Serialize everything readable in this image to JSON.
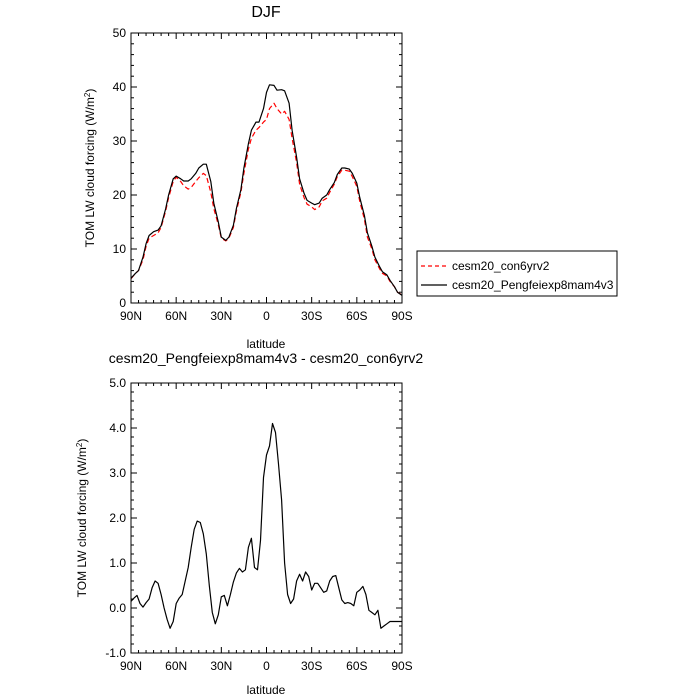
{
  "chart_data": [
    {
      "type": "line",
      "title": "DJF",
      "xlabel": "latitude",
      "ylabel_main": "TOM LW cloud forcing (W/m",
      "ylabel_sup": "2",
      "ylabel_close": ")",
      "xlim": [
        90,
        -90
      ],
      "ylim": [
        0,
        50
      ],
      "x_ticks": [
        {
          "value": 90,
          "label": "90N"
        },
        {
          "value": 60,
          "label": "60N"
        },
        {
          "value": 30,
          "label": "30N"
        },
        {
          "value": 0,
          "label": "0"
        },
        {
          "value": -30,
          "label": "30S"
        },
        {
          "value": -60,
          "label": "60S"
        },
        {
          "value": -90,
          "label": "90S"
        }
      ],
      "y_ticks": [
        {
          "value": 0,
          "label": "0"
        },
        {
          "value": 10,
          "label": "10"
        },
        {
          "value": 20,
          "label": "20"
        },
        {
          "value": 30,
          "label": "30"
        },
        {
          "value": 40,
          "label": "40"
        },
        {
          "value": 50,
          "label": "50"
        }
      ],
      "legend_position": "right",
      "series": [
        {
          "name": "cesm20_con6yrv2",
          "color": "#ff0000",
          "dash": true,
          "x": [
            90,
            87,
            85,
            82,
            80,
            78,
            75,
            72,
            70,
            67,
            65,
            62,
            60,
            57,
            55,
            52,
            50,
            47,
            45,
            42,
            40,
            37,
            35,
            32,
            30,
            27,
            25,
            22,
            20,
            17,
            15,
            12,
            10,
            7,
            5,
            2,
            0,
            -2,
            -5,
            -7,
            -10,
            -12,
            -15,
            -17,
            -20,
            -22,
            -25,
            -27,
            -30,
            -32,
            -35,
            -37,
            -40,
            -42,
            -45,
            -47,
            -50,
            -52,
            -55,
            -57,
            -60,
            -62,
            -65,
            -67,
            -70,
            -72,
            -75,
            -77,
            -80,
            -82,
            -85,
            -87,
            -90
          ],
          "y": [
            4.5,
            5.5,
            6,
            8,
            10.5,
            12,
            12.5,
            13,
            14,
            17,
            19.5,
            22.5,
            23.3,
            22.5,
            21.7,
            21.1,
            21.4,
            22.5,
            23.2,
            24,
            23.6,
            20.5,
            17.5,
            14.5,
            12,
            11.5,
            12,
            14,
            17,
            20.5,
            24,
            28.5,
            30.5,
            32,
            32.5,
            33.5,
            34,
            36,
            37,
            36,
            35,
            35.5,
            34,
            30.5,
            26,
            22,
            19.5,
            18.3,
            17.8,
            17.3,
            17.8,
            18.9,
            19.4,
            20.5,
            22,
            23.4,
            24.6,
            24.6,
            24.4,
            23.4,
            21.6,
            18.8,
            15.5,
            12.2,
            10,
            8,
            6.4,
            5.5,
            5,
            4,
            3,
            2,
            1.5
          ]
        },
        {
          "name": "cesm20_Pengfeiexp8mam4v3",
          "color": "#000000",
          "dash": false,
          "x": [
            90,
            87,
            85,
            82,
            80,
            78,
            75,
            72,
            70,
            67,
            65,
            62,
            60,
            57,
            55,
            52,
            50,
            47,
            45,
            42,
            40,
            37,
            35,
            32,
            30,
            27,
            25,
            22,
            20,
            17,
            15,
            12,
            10,
            7,
            5,
            2,
            0,
            -2,
            -5,
            -7,
            -10,
            -12,
            -15,
            -17,
            -20,
            -22,
            -25,
            -27,
            -30,
            -32,
            -35,
            -37,
            -40,
            -42,
            -45,
            -47,
            -50,
            -52,
            -55,
            -57,
            -60,
            -62,
            -65,
            -67,
            -70,
            -72,
            -75,
            -77,
            -80,
            -82,
            -85,
            -87,
            -90
          ],
          "y": [
            4.6,
            5.5,
            6,
            8.5,
            11,
            12.5,
            13.2,
            13.5,
            14.3,
            17.4,
            20,
            23,
            23.5,
            23,
            22.6,
            22.6,
            23,
            24,
            25,
            25.7,
            25.7,
            22.5,
            18.5,
            15,
            12.2,
            11.6,
            12.2,
            14.4,
            17.5,
            21,
            25,
            29.5,
            32,
            33.5,
            33.5,
            36,
            39,
            40.4,
            40.3,
            39.4,
            39.5,
            39.3,
            37,
            32,
            27,
            23,
            20.3,
            19,
            18.5,
            18.2,
            18.5,
            19.4,
            20,
            21,
            22.3,
            23.8,
            25,
            25,
            24.8,
            24,
            22.2,
            19.5,
            16.2,
            13,
            10.5,
            8.5,
            6.8,
            5.8,
            5.2,
            4.2,
            3,
            2,
            1.4
          ]
        }
      ]
    },
    {
      "type": "line",
      "title": "cesm20_Pengfeiexp8mam4v3 - cesm20_con6yrv2",
      "xlabel": "latitude",
      "ylabel_main": "TOM LW cloud forcing (W/m",
      "ylabel_sup": "2",
      "ylabel_close": ")",
      "xlim": [
        90,
        -90
      ],
      "ylim": [
        -1.0,
        5.0
      ],
      "x_ticks": [
        {
          "value": 90,
          "label": "90N"
        },
        {
          "value": 60,
          "label": "60N"
        },
        {
          "value": 30,
          "label": "30N"
        },
        {
          "value": 0,
          "label": "0"
        },
        {
          "value": -30,
          "label": "30S"
        },
        {
          "value": -60,
          "label": "60S"
        },
        {
          "value": -90,
          "label": "90S"
        }
      ],
      "y_ticks": [
        {
          "value": -1.0,
          "label": "-1.0"
        },
        {
          "value": 0.0,
          "label": "0.0"
        },
        {
          "value": 1.0,
          "label": "1.0"
        },
        {
          "value": 2.0,
          "label": "2.0"
        },
        {
          "value": 3.0,
          "label": "3.0"
        },
        {
          "value": 4.0,
          "label": "4.0"
        },
        {
          "value": 5.0,
          "label": "5.0"
        }
      ],
      "series": [
        {
          "color": "#000000",
          "dash": false,
          "x": [
            90,
            88,
            86,
            84,
            82,
            80,
            78,
            76,
            74,
            72,
            70,
            68,
            66,
            64,
            62,
            60,
            58,
            56,
            54,
            52,
            50,
            48,
            46,
            44,
            42,
            40,
            38,
            36,
            34,
            32,
            30,
            28,
            26,
            24,
            22,
            20,
            18,
            16,
            14,
            12,
            10,
            8,
            6,
            4,
            2,
            0,
            -2,
            -4,
            -6,
            -8,
            -10,
            -12,
            -14,
            -16,
            -18,
            -20,
            -22,
            -24,
            -26,
            -28,
            -30,
            -32,
            -34,
            -36,
            -38,
            -40,
            -42,
            -44,
            -46,
            -48,
            -50,
            -52,
            -54,
            -56,
            -58,
            -60,
            -62,
            -64,
            -66,
            -68,
            -70,
            -72,
            -74,
            -76,
            -78,
            -80,
            -82,
            -84,
            -86,
            -88,
            -90
          ],
          "y": [
            0.15,
            0.22,
            0.28,
            0.1,
            0.02,
            0.12,
            0.2,
            0.45,
            0.6,
            0.55,
            0.3,
            0,
            -0.25,
            -0.45,
            -0.3,
            0.1,
            0.22,
            0.3,
            0.6,
            0.9,
            1.35,
            1.75,
            1.93,
            1.9,
            1.65,
            1.2,
            0.5,
            -0.1,
            -0.35,
            -0.15,
            0.25,
            0.28,
            0.05,
            0.3,
            0.58,
            0.78,
            0.88,
            0.8,
            0.85,
            1.35,
            1.55,
            0.9,
            0.85,
            1.5,
            2.9,
            3.4,
            3.6,
            4.1,
            3.9,
            3.2,
            2.4,
            1.0,
            0.3,
            0.1,
            0.2,
            0.6,
            0.75,
            0.6,
            0.8,
            0.7,
            0.4,
            0.55,
            0.55,
            0.45,
            0.35,
            0.38,
            0.6,
            0.7,
            0.72,
            0.45,
            0.18,
            0.1,
            0.12,
            0.1,
            0.05,
            0.35,
            0.4,
            0.48,
            0.3,
            -0.05,
            -0.1,
            -0.15,
            -0.05,
            -0.45,
            -0.4,
            -0.35,
            -0.3,
            -0.3,
            -0.3,
            -0.3,
            -0.3
          ]
        }
      ]
    }
  ]
}
